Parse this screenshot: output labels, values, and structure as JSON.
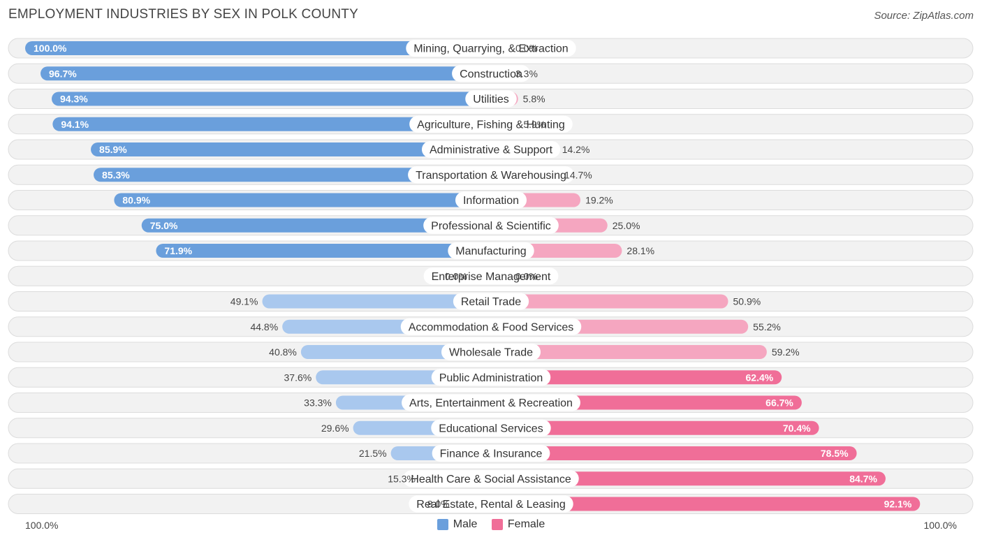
{
  "chart_data": {
    "type": "bar",
    "orientation": "horizontal-diverging",
    "title": "EMPLOYMENT INDUSTRIES BY SEX IN POLK COUNTY",
    "source": "Source: ZipAtlas.com",
    "categories": [
      "Mining, Quarrying, & Extraction",
      "Construction",
      "Utilities",
      "Agriculture, Fishing & Hunting",
      "Administrative & Support",
      "Transportation & Warehousing",
      "Information",
      "Professional & Scientific",
      "Manufacturing",
      "Enterprise Management",
      "Retail Trade",
      "Accommodation & Food Services",
      "Wholesale Trade",
      "Public Administration",
      "Arts, Entertainment & Recreation",
      "Educational Services",
      "Finance & Insurance",
      "Health Care & Social Assistance",
      "Real Estate, Rental & Leasing"
    ],
    "series": [
      {
        "name": "Male",
        "color": "#6a9fdc",
        "color_light": "#a9c8ee",
        "values": [
          100.0,
          96.7,
          94.3,
          94.1,
          85.9,
          85.3,
          80.9,
          75.0,
          71.9,
          0.0,
          49.1,
          44.8,
          40.8,
          37.6,
          33.3,
          29.6,
          21.5,
          15.3,
          8.0
        ]
      },
      {
        "name": "Female",
        "color": "#f06e98",
        "color_light": "#f5a6c0",
        "values": [
          0.0,
          3.3,
          5.8,
          5.9,
          14.2,
          14.7,
          19.2,
          25.0,
          28.1,
          0.0,
          50.9,
          55.2,
          59.2,
          62.4,
          66.7,
          70.4,
          78.5,
          84.7,
          92.1
        ]
      }
    ],
    "xlim": [
      0,
      100
    ],
    "axis_left_label": "100.0%",
    "axis_right_label": "100.0%",
    "legend_position": "bottom-center"
  }
}
